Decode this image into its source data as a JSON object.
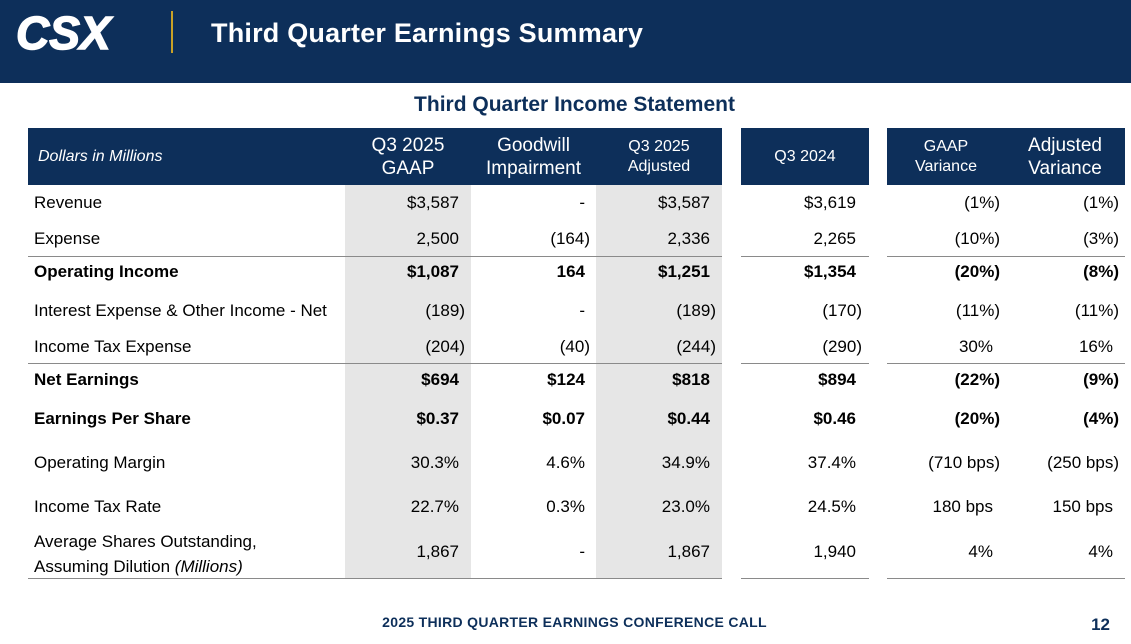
{
  "header": {
    "logo_text": "CSX",
    "title": "Third Quarter Earnings Summary"
  },
  "statement_title": "Third Quarter Income Statement",
  "columns": {
    "label": "Dollars in Millions",
    "gaap_line1": "Q3 2025",
    "gaap_line2": "GAAP",
    "goodwill_line1": "Goodwill",
    "goodwill_line2": "Impairment",
    "adjusted_line1": "Q3 2025",
    "adjusted_line2": "Adjusted",
    "prior": "Q3 2024",
    "gaap_var_line1": "GAAP",
    "gaap_var_line2": "Variance",
    "adj_var_line1": "Adjusted",
    "adj_var_line2": "Variance"
  },
  "rows": [
    {
      "label": "Revenue",
      "gaap": "$3,587",
      "goodwill": "-",
      "adjusted": "$3,587",
      "prior": "$3,619",
      "gaap_var": "(1%)",
      "adj_var": "(1%)"
    },
    {
      "label": "Expense",
      "gaap": "2,500",
      "goodwill": "(164)",
      "adjusted": "2,336",
      "prior": "2,265",
      "gaap_var": "(10%)",
      "adj_var": "(3%)"
    },
    {
      "label": "Operating Income",
      "gaap": "$1,087",
      "goodwill": "164",
      "adjusted": "$1,251",
      "prior": "$1,354",
      "gaap_var": "(20%)",
      "adj_var": "(8%)"
    },
    {
      "label": "Interest Expense & Other Income - Net",
      "gaap": "(189)",
      "goodwill": "-",
      "adjusted": "(189)",
      "prior": "(170)",
      "gaap_var": "(11%)",
      "adj_var": "(11%)"
    },
    {
      "label": "Income Tax Expense",
      "gaap": "(204)",
      "goodwill": "(40)",
      "adjusted": "(244)",
      "prior": "(290)",
      "gaap_var": "30%",
      "adj_var": "16%"
    },
    {
      "label": "Net Earnings",
      "gaap": "$694",
      "goodwill": "$124",
      "adjusted": "$818",
      "prior": "$894",
      "gaap_var": "(22%)",
      "adj_var": "(9%)"
    },
    {
      "label": "Earnings Per Share",
      "gaap": "$0.37",
      "goodwill": "$0.07",
      "adjusted": "$0.44",
      "prior": "$0.46",
      "gaap_var": "(20%)",
      "adj_var": "(4%)"
    },
    {
      "label": "Operating Margin",
      "gaap": "30.3%",
      "goodwill": "4.6%",
      "adjusted": "34.9%",
      "prior": "37.4%",
      "gaap_var": "(710 bps)",
      "adj_var": "(250 bps)"
    },
    {
      "label": "Income Tax Rate",
      "gaap": "22.7%",
      "goodwill": "0.3%",
      "adjusted": "23.0%",
      "prior": "24.5%",
      "gaap_var": "180 bps",
      "adj_var": "150 bps"
    },
    {
      "label_line1": "Average Shares Outstanding,",
      "label_line2": "Assuming Dilution ",
      "label_italic": "(Millions)",
      "gaap": "1,867",
      "goodwill": "-",
      "adjusted": "1,867",
      "prior": "1,940",
      "gaap_var": "4%",
      "adj_var": "4%"
    }
  ],
  "footer": {
    "text": "2025 THIRD QUARTER EARNINGS CONFERENCE CALL",
    "page": "12"
  },
  "colors": {
    "navy": "#0d2f5a",
    "gold": "#c9a227",
    "shade": "#e6e6e6"
  }
}
